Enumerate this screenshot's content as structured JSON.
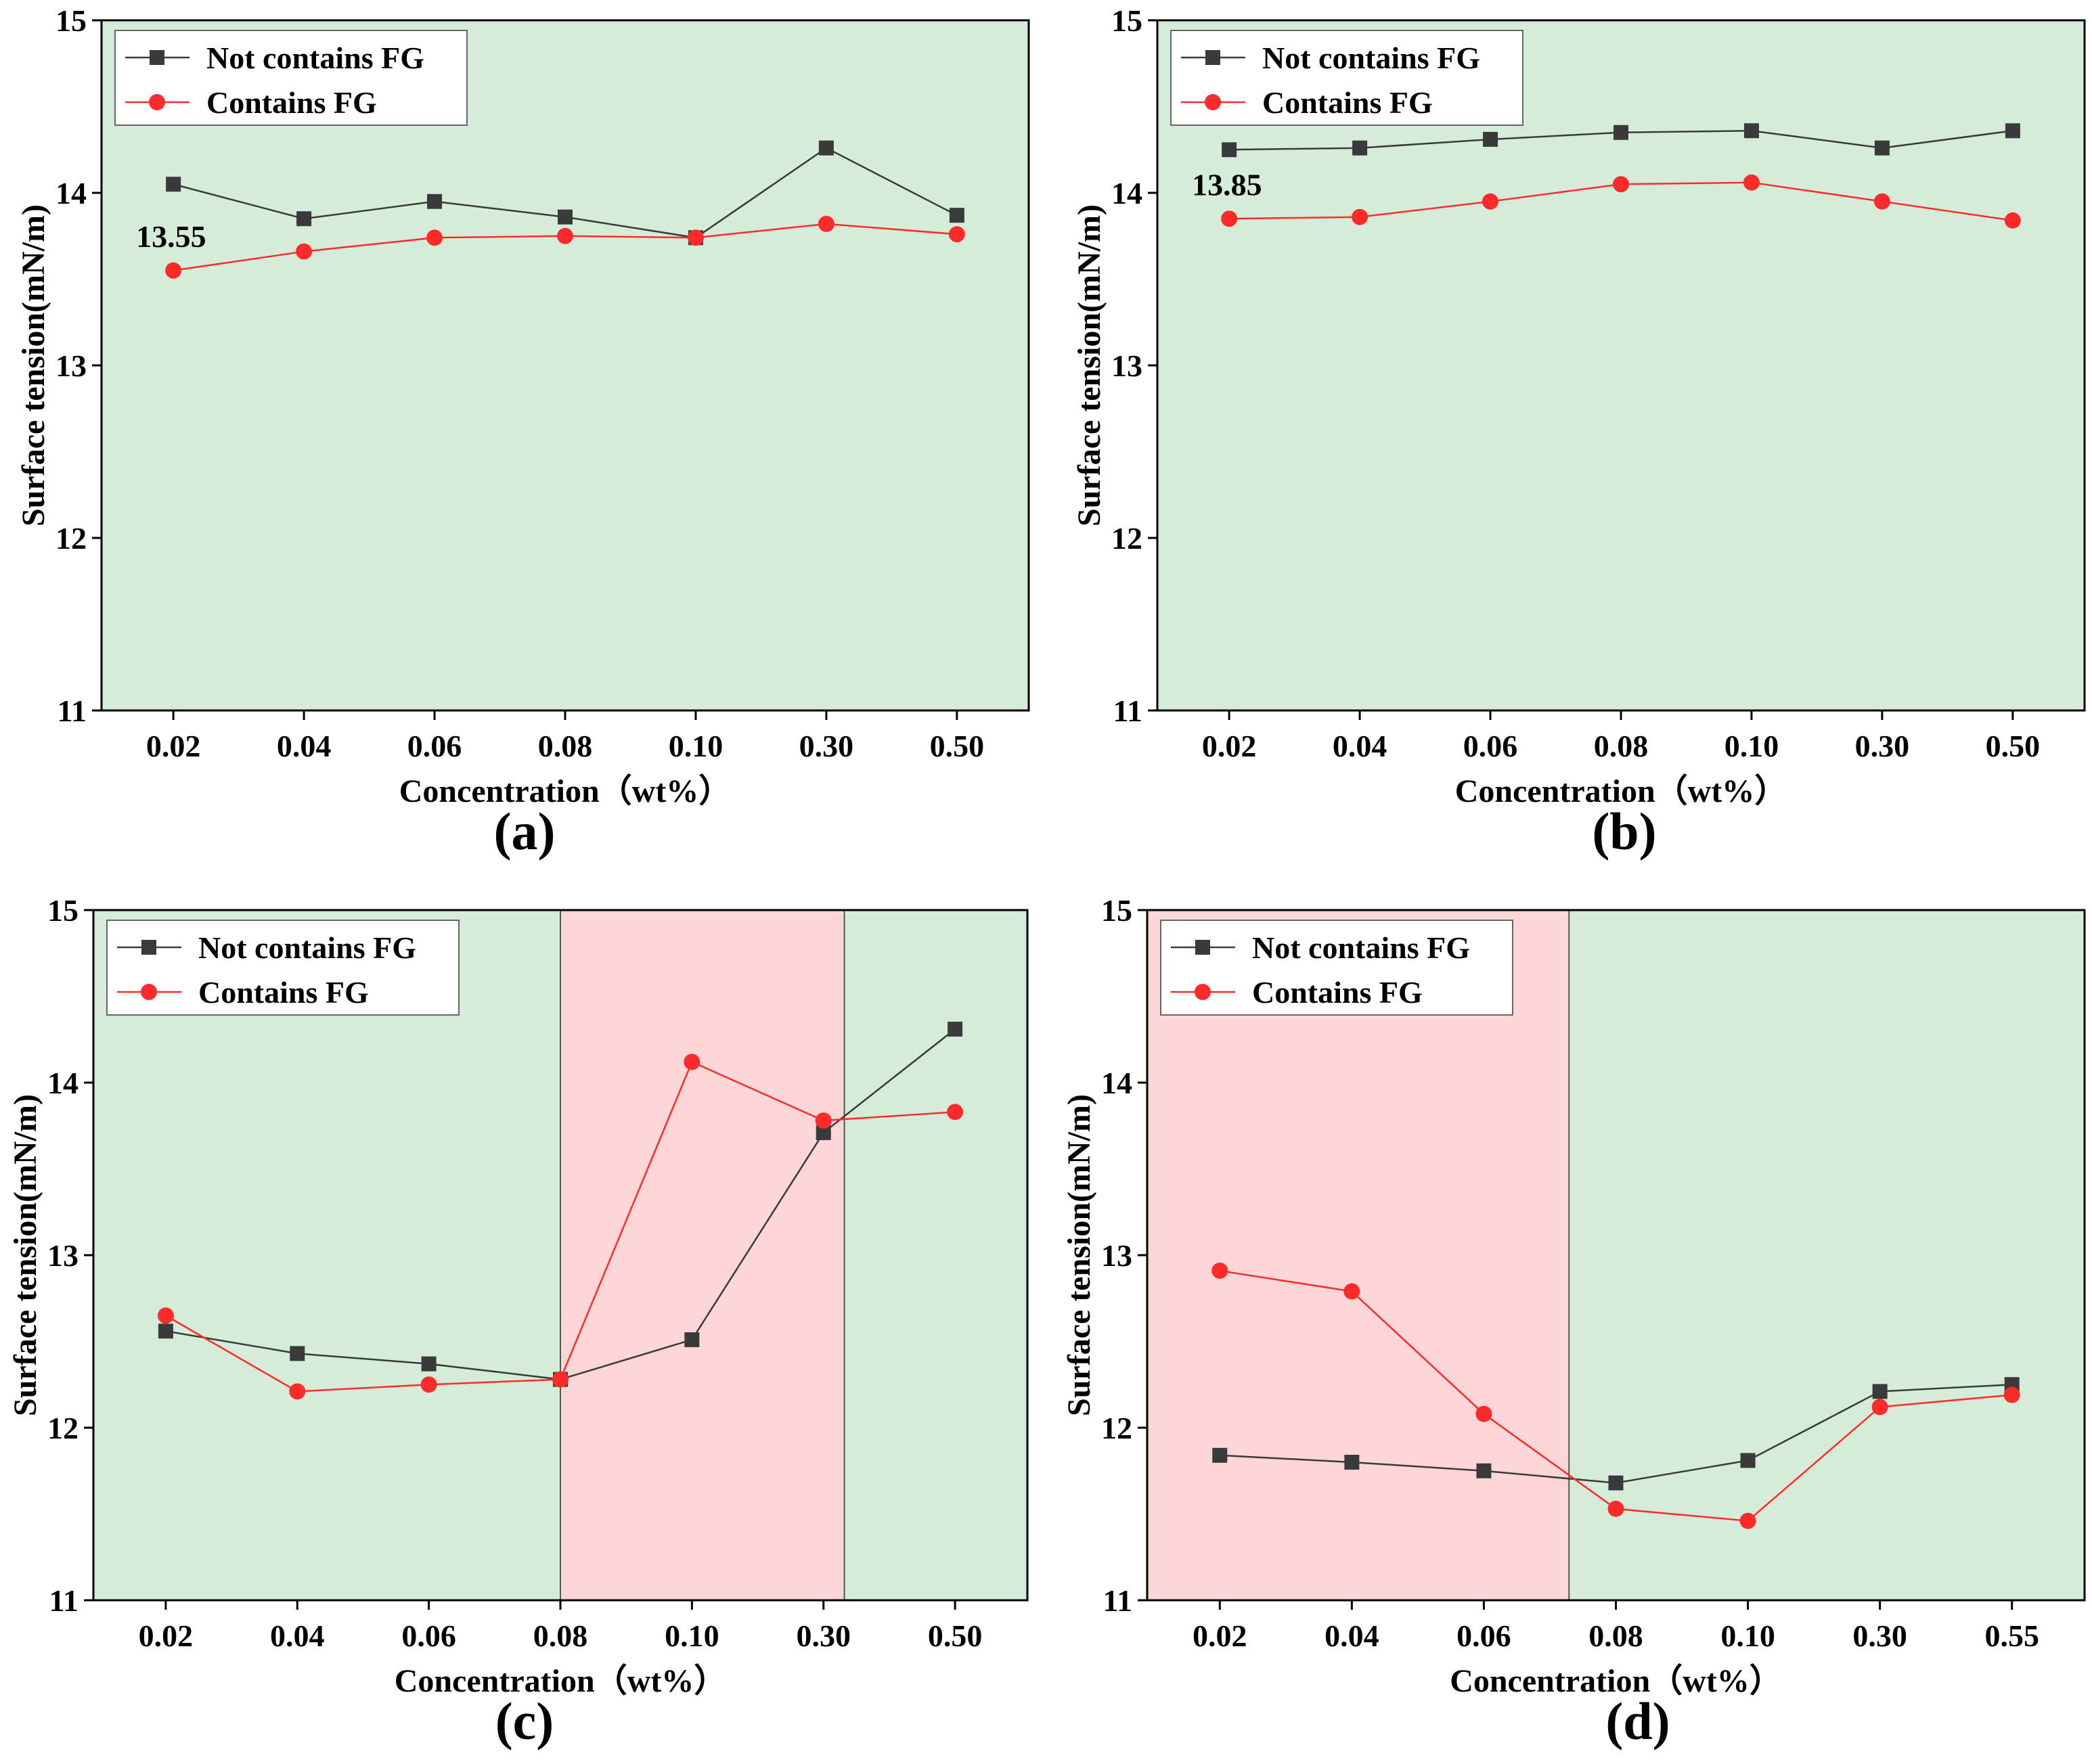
{
  "colors": {
    "green_region": "#d5ecd9",
    "red_region": "#fdd7d7",
    "series_not_contains": "#3a3a3a",
    "series_contains": "#ff2a2a",
    "axis": "#000000"
  },
  "chart_data": [
    {
      "panel": "(a)",
      "type": "line",
      "categories": [
        "0.02",
        "0.04",
        "0.06",
        "0.08",
        "0.10",
        "0.30",
        "0.50"
      ],
      "series": [
        {
          "name": "Not contains FG",
          "marker": "square",
          "values": [
            14.05,
            13.85,
            13.95,
            13.86,
            13.74,
            14.26,
            13.87
          ]
        },
        {
          "name": "Contains FG",
          "marker": "circle",
          "values": [
            13.55,
            13.66,
            13.74,
            13.75,
            13.74,
            13.82,
            13.76
          ]
        }
      ],
      "ylim": [
        11,
        15
      ],
      "yticks": [
        "11",
        "12",
        "13",
        "14",
        "15"
      ],
      "xlabel": "Concentration（wt%）",
      "ylabel": "Surface tension(mN/m)",
      "legend_position": "top-left",
      "regions": [
        {
          "from": 0,
          "to": 1,
          "color": "green"
        }
      ],
      "annotation": {
        "text": "13.55",
        "category_index": 0,
        "value": 13.55
      }
    },
    {
      "panel": "(b)",
      "type": "line",
      "categories": [
        "0.02",
        "0.04",
        "0.06",
        "0.08",
        "0.10",
        "0.30",
        "0.50"
      ],
      "series": [
        {
          "name": "Not contains FG",
          "marker": "square",
          "values": [
            14.25,
            14.26,
            14.31,
            14.35,
            14.36,
            14.26,
            14.36
          ]
        },
        {
          "name": "Contains FG",
          "marker": "circle",
          "values": [
            13.85,
            13.86,
            13.95,
            14.05,
            14.06,
            13.95,
            13.84
          ]
        }
      ],
      "ylim": [
        11,
        15
      ],
      "yticks": [
        "11",
        "12",
        "13",
        "14",
        "15"
      ],
      "xlabel": "Concentration（wt%）",
      "ylabel": "Surface tension(mN/m)",
      "legend_position": "top-left",
      "regions": [
        {
          "from": 0,
          "to": 1,
          "color": "green"
        }
      ],
      "annotation": {
        "text": "13.85",
        "category_index": 0,
        "value": 13.85
      }
    },
    {
      "panel": "(c)",
      "type": "line",
      "categories": [
        "0.02",
        "0.04",
        "0.06",
        "0.08",
        "0.10",
        "0.30",
        "0.50"
      ],
      "series": [
        {
          "name": "Not contains FG",
          "marker": "square",
          "values": [
            12.56,
            12.43,
            12.37,
            12.28,
            12.51,
            13.71,
            14.31
          ]
        },
        {
          "name": "Contains FG",
          "marker": "circle",
          "values": [
            12.65,
            12.21,
            12.25,
            12.28,
            14.12,
            13.78,
            13.83
          ]
        }
      ],
      "ylim": [
        11,
        15
      ],
      "yticks": [
        "11",
        "12",
        "13",
        "14",
        "15"
      ],
      "xlabel": "Concentration（wt%）",
      "ylabel": "Surface tension(mN/m)",
      "legend_position": "top-left",
      "regions": [
        {
          "from": 0,
          "to": 0.5,
          "color": "green"
        },
        {
          "from": 0.5,
          "to": 0.804,
          "color": "red"
        },
        {
          "from": 0.804,
          "to": 1,
          "color": "green"
        }
      ]
    },
    {
      "panel": "(d)",
      "type": "line",
      "categories": [
        "0.02",
        "0.04",
        "0.06",
        "0.08",
        "0.10",
        "0.30",
        "0.55"
      ],
      "series": [
        {
          "name": "Not contains FG",
          "marker": "square",
          "values": [
            11.84,
            11.8,
            11.75,
            11.68,
            11.81,
            12.21,
            12.25
          ]
        },
        {
          "name": "Contains FG",
          "marker": "circle",
          "values": [
            12.91,
            12.79,
            12.08,
            11.53,
            11.46,
            12.12,
            12.19
          ]
        }
      ],
      "ylim": [
        11,
        15
      ],
      "yticks": [
        "11",
        "12",
        "13",
        "14",
        "15"
      ],
      "xlabel": "Concentration（wt%）",
      "ylabel": "Surface tension(mN/m)",
      "legend_position": "top-left",
      "regions": [
        {
          "from": 0,
          "to": 0.45,
          "color": "red"
        },
        {
          "from": 0.45,
          "to": 1,
          "color": "green"
        }
      ]
    }
  ]
}
